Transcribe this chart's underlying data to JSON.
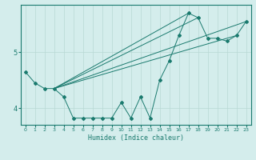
{
  "xlabel": "Humidex (Indice chaleur)",
  "background_color": "#d4edec",
  "line_color": "#1a7a6e",
  "grid_color": "#b8d8d4",
  "xlim": [
    -0.5,
    23.5
  ],
  "ylim": [
    3.7,
    5.85
  ],
  "yticks": [
    4,
    5
  ],
  "xticks": [
    0,
    1,
    2,
    3,
    4,
    5,
    6,
    7,
    8,
    9,
    10,
    11,
    12,
    13,
    14,
    15,
    16,
    17,
    18,
    19,
    20,
    21,
    22,
    23
  ],
  "curve_x": [
    0,
    1,
    2,
    3,
    4,
    5,
    6,
    7,
    8,
    9,
    10,
    11,
    12,
    13,
    14,
    15,
    16,
    17,
    18,
    19,
    20,
    21,
    22,
    23
  ],
  "curve_y": [
    4.65,
    4.45,
    4.35,
    4.35,
    4.2,
    3.82,
    3.82,
    3.82,
    3.82,
    3.82,
    4.1,
    3.82,
    4.2,
    3.82,
    4.5,
    4.85,
    5.3,
    5.7,
    5.62,
    5.25,
    5.25,
    5.2,
    5.3,
    5.55
  ],
  "straight_lines": [
    {
      "x": [
        3,
        23
      ],
      "y": [
        4.35,
        5.55
      ]
    },
    {
      "x": [
        3,
        17
      ],
      "y": [
        4.35,
        5.7
      ]
    },
    {
      "x": [
        3,
        18
      ],
      "y": [
        4.35,
        5.62
      ]
    },
    {
      "x": [
        3,
        22
      ],
      "y": [
        4.35,
        5.3
      ]
    }
  ]
}
